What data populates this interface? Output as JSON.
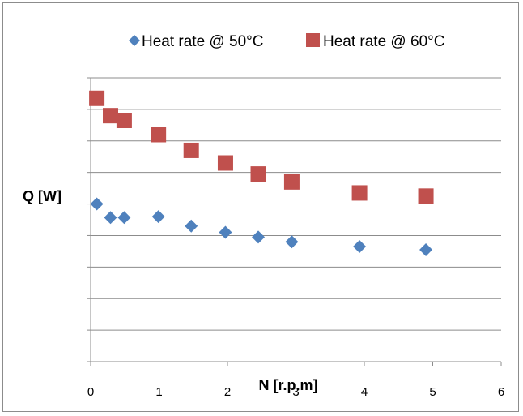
{
  "chart_data": {
    "type": "scatter",
    "title": "",
    "xlabel": "N [r.p.m]",
    "ylabel": "Q [W]",
    "xlim": [
      0,
      6
    ],
    "x_ticks": [
      "0",
      "1",
      "2",
      "3",
      "4",
      "5",
      "6"
    ],
    "ylim": [
      0,
      9
    ],
    "y_tick_labels_shown": false,
    "grid": "horizontal",
    "legend_position": "top",
    "series": [
      {
        "name": "Heat rate @ 50°C",
        "marker": "diamond",
        "color": "#4F81BD",
        "x": [
          0.09,
          0.29,
          0.49,
          0.99,
          1.47,
          1.97,
          2.45,
          2.94,
          3.93,
          4.9
        ],
        "y": [
          5.0,
          4.57,
          4.57,
          4.6,
          4.3,
          4.1,
          3.95,
          3.8,
          3.65,
          3.55
        ]
      },
      {
        "name": "Heat rate @ 60°C",
        "marker": "square",
        "color": "#C0504D",
        "x": [
          0.09,
          0.29,
          0.49,
          0.99,
          1.47,
          1.97,
          2.45,
          2.94,
          3.93,
          4.9
        ],
        "y": [
          8.35,
          7.8,
          7.65,
          7.2,
          6.7,
          6.3,
          5.95,
          5.7,
          5.35,
          5.25
        ]
      }
    ]
  }
}
